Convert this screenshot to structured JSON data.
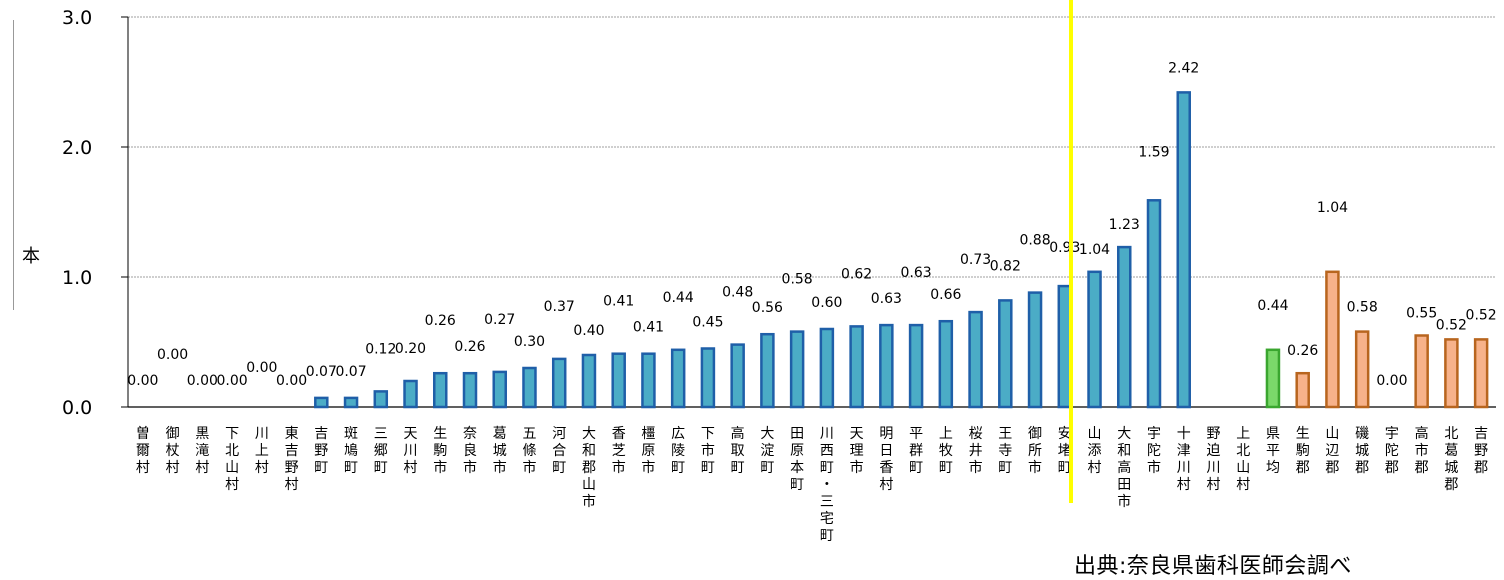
{
  "chart_data": {
    "type": "bar",
    "ylabel": "本",
    "ylim": [
      0,
      3.0
    ],
    "yticks": [
      "0.0",
      "1.0",
      "2.0",
      "3.0"
    ],
    "grid": true,
    "categories": [
      "曽爾村",
      "御杖村",
      "黒滝村",
      "下北山村",
      "川上村",
      "東吉野村",
      "吉野町",
      "斑鳩町",
      "三郷町",
      "天川村",
      "生駒市",
      "奈良市",
      "葛城市",
      "五條市",
      "河合町",
      "大和郡山市",
      "香芝市",
      "橿原市",
      "広陵町",
      "下市町",
      "高取町",
      "大淀町",
      "田原本町",
      "川西町・三宅町",
      "天理市",
      "明日香村",
      "平群町",
      "上牧町",
      "桜井市",
      "王寺町",
      "御所市",
      "安堵町",
      "山添村",
      "大和高田市",
      "宇陀市",
      "十津川村",
      "野迫川村",
      "上北山村",
      "県平均",
      "生駒郡",
      "山辺郡",
      "磯城郡",
      "宇陀郡",
      "高市郡",
      "北葛城郡",
      "吉野郡"
    ],
    "values": [
      0.0,
      0.0,
      0.0,
      0.0,
      0.0,
      0.0,
      0.07,
      0.07,
      0.12,
      0.2,
      0.26,
      0.26,
      0.27,
      0.3,
      0.37,
      0.4,
      0.41,
      0.41,
      0.44,
      0.45,
      0.48,
      0.56,
      0.58,
      0.6,
      0.62,
      0.63,
      0.63,
      0.66,
      0.73,
      0.82,
      0.88,
      0.93,
      1.04,
      1.23,
      1.59,
      2.42,
      null,
      null,
      0.44,
      0.26,
      1.04,
      0.58,
      0.0,
      0.55,
      0.52,
      0.52
    ],
    "value_labels": [
      "0.00",
      "0.00",
      "0.00",
      "0.00",
      "0.00",
      "0.00",
      "0.07",
      "0.07",
      "0.12",
      "0.20",
      "0.26",
      "0.26",
      "0.27",
      "0.30",
      "0.37",
      "0.40",
      "0.41",
      "0.41",
      "0.44",
      "0.45",
      "0.48",
      "0.56",
      "0.58",
      "0.60",
      "0.62",
      "0.63",
      "0.63",
      "0.66",
      "0.73",
      "0.82",
      "0.88",
      "0.93",
      "1.04",
      "1.23",
      "1.59",
      "2.42",
      "",
      "",
      "0.44",
      "0.26",
      "1.04",
      "0.58",
      "0.00",
      "0.55",
      "0.52",
      "0.52"
    ],
    "bar_groups": [
      "municipality",
      "municipality",
      "municipality",
      "municipality",
      "municipality",
      "municipality",
      "municipality",
      "municipality",
      "municipality",
      "municipality",
      "municipality",
      "municipality",
      "municipality",
      "municipality",
      "municipality",
      "municipality",
      "municipality",
      "municipality",
      "municipality",
      "municipality",
      "municipality",
      "municipality",
      "municipality",
      "municipality",
      "municipality",
      "municipality",
      "municipality",
      "municipality",
      "municipality",
      "municipality",
      "municipality",
      "municipality",
      "municipality",
      "municipality",
      "municipality",
      "municipality",
      "municipality",
      "municipality",
      "average",
      "county",
      "county",
      "county",
      "county",
      "county",
      "county",
      "county"
    ],
    "colors": {
      "municipality": {
        "fill": "#4BACC6",
        "stroke": "#1F5FA8"
      },
      "average": {
        "fill": "#7BD86A",
        "stroke": "#3AA62F"
      },
      "county": {
        "fill": "#F7B28A",
        "stroke": "#B8651E"
      },
      "marker_line": "#FFFF00",
      "gridline": "#808080"
    }
  },
  "source_note": "出典:奈良県歯科医師会調べ"
}
